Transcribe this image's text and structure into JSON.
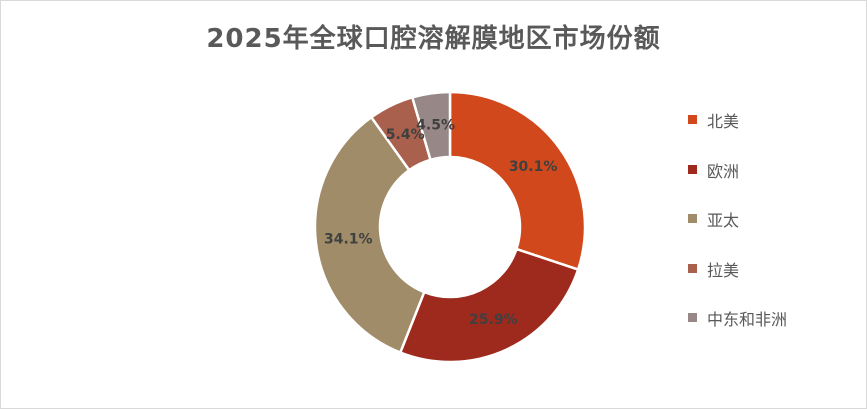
{
  "chart_data": {
    "type": "pie",
    "variant": "donut",
    "title": "2025年全球口腔溶解膜地区市场份额",
    "categories": [
      "北美",
      "欧洲",
      "亚太",
      "拉美",
      "中东和非洲"
    ],
    "values": [
      30.1,
      25.9,
      34.1,
      5.4,
      4.5
    ],
    "labels": [
      "30.1%",
      "25.9%",
      "34.1%",
      "5.4%",
      "4.5%"
    ],
    "colors": [
      "#D0481B",
      "#9E2A1E",
      "#A08C68",
      "#A9604C",
      "#978887"
    ],
    "unit": "%",
    "start_angle": "12 o'clock",
    "direction": "clockwise",
    "legend_position": "right"
  }
}
